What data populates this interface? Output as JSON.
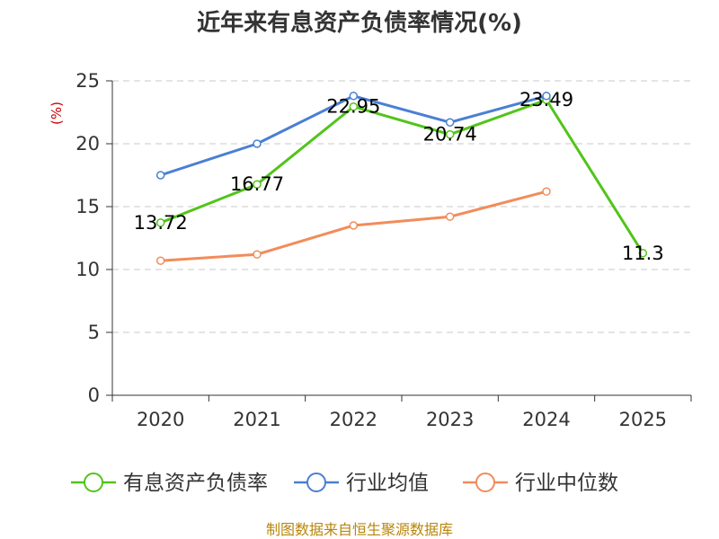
{
  "chart_data": {
    "type": "line",
    "title": "近年来有息资产负债率情况(%)",
    "ylabel": "(%)",
    "xlabel": "",
    "categories": [
      "2020",
      "2021",
      "2022",
      "2023",
      "2024",
      "2025"
    ],
    "ylim": [
      0,
      25
    ],
    "yticks": [
      "0",
      "5",
      "10",
      "15",
      "20",
      "25"
    ],
    "grid": true,
    "legend_position": "bottom",
    "series": [
      {
        "name": "有息资产负债率",
        "color": "#52c41a",
        "values": [
          13.72,
          16.77,
          22.95,
          20.74,
          23.49,
          11.3
        ],
        "labels": [
          "13.72",
          "16.77",
          "22.95",
          "20.74",
          "23.49",
          "11.3"
        ]
      },
      {
        "name": "行业均值",
        "color": "#4a7fd4",
        "values": [
          17.5,
          20.0,
          23.8,
          21.7,
          23.8,
          null
        ]
      },
      {
        "name": "行业中位数",
        "color": "#f28c5a",
        "values": [
          10.7,
          11.2,
          13.5,
          14.2,
          16.2,
          null
        ]
      }
    ]
  },
  "footer": {
    "source": "制图数据来自恒生聚源数据库"
  }
}
